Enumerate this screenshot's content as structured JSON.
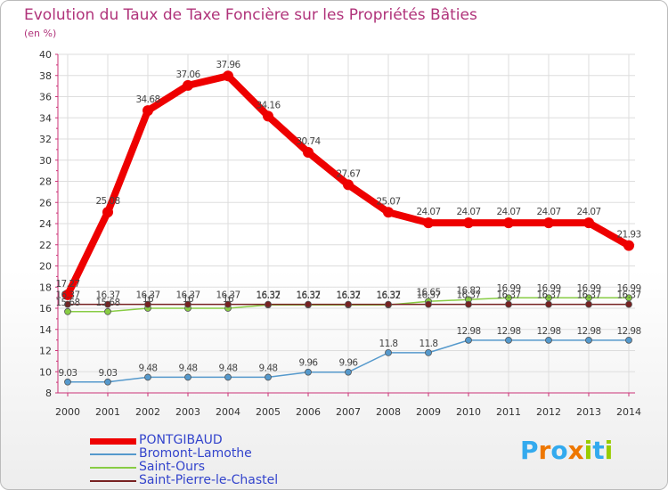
{
  "chart_data": {
    "type": "line",
    "title": "Evolution du Taux de Taxe Foncière sur les Propriétés Bâties",
    "subtitle": "(en %)",
    "xlabel": "",
    "ylabel": "",
    "categories": [
      "2000",
      "2001",
      "2002",
      "2003",
      "2004",
      "2005",
      "2006",
      "2007",
      "2008",
      "2009",
      "2010",
      "2011",
      "2012",
      "2013",
      "2014"
    ],
    "ylim": [
      8,
      40
    ],
    "yticks": [
      "8",
      "10",
      "12",
      "14",
      "16",
      "18",
      "20",
      "22",
      "24",
      "26",
      "28",
      "30",
      "32",
      "34",
      "36",
      "38",
      "40"
    ],
    "grid": true,
    "legend_position": "bottom-left",
    "series": [
      {
        "name": "PONTGIBAUD",
        "color": "#ee0000",
        "values": [
          17.27,
          25.08,
          34.68,
          37.06,
          37.96,
          34.16,
          30.74,
          27.67,
          25.07,
          24.07,
          24.07,
          24.07,
          24.07,
          24.07,
          21.93
        ],
        "labels": [
          "17.27",
          "25.08",
          "34.68",
          "37.06",
          "37.96",
          "34.16",
          "30.74",
          "27.67",
          "25.07",
          "24.07",
          "24.07",
          "24.07",
          "24.07",
          "24.07",
          "21.93"
        ]
      },
      {
        "name": "Bromont-Lamothe",
        "color": "#5599cc",
        "values": [
          9.03,
          9.03,
          9.48,
          9.48,
          9.48,
          9.48,
          9.96,
          9.96,
          11.8,
          11.8,
          12.98,
          12.98,
          12.98,
          12.98,
          12.98
        ],
        "labels": [
          "9.03",
          "9.03",
          "9.48",
          "9.48",
          "9.48",
          "9.48",
          "9.96",
          "9.96",
          "11.8",
          "11.8",
          "12.98",
          "12.98",
          "12.98",
          "12.98",
          "12.98"
        ]
      },
      {
        "name": "Saint-Ours",
        "color": "#88cc44",
        "values": [
          15.68,
          15.68,
          16,
          16,
          16,
          16.32,
          16.32,
          16.32,
          16.32,
          16.65,
          16.82,
          16.99,
          16.99,
          16.99,
          16.99
        ],
        "labels": [
          "15.68",
          "15.68",
          "16",
          "16",
          "16",
          "16.32",
          "16.32",
          "16.32",
          "16.32",
          "16.65",
          "16.82",
          "16.99",
          "16.99",
          "16.99",
          "16.99"
        ]
      },
      {
        "name": "Saint-Pierre-le-Chastel",
        "color": "#772222",
        "values": [
          16.37,
          16.37,
          16.37,
          16.37,
          16.37,
          16.37,
          16.37,
          16.37,
          16.37,
          16.37,
          16.37,
          16.37,
          16.37,
          16.37,
          16.37
        ],
        "labels": [
          "16.37",
          "16.37",
          "16.37",
          "16.37",
          "16.37",
          "16.37",
          "16.37",
          "16.37",
          "16.37",
          "16.37",
          "16.37",
          "16.37",
          "16.37",
          "16.37",
          "16.37"
        ]
      }
    ]
  },
  "logo": {
    "letters": [
      "P",
      "r",
      "o",
      "x",
      "i",
      "t",
      "i"
    ],
    "colors": [
      "#33aaee",
      "#ee7700",
      "#33aaee",
      "#ee7700",
      "#99cc00",
      "#33aaee",
      "#99cc00"
    ]
  }
}
